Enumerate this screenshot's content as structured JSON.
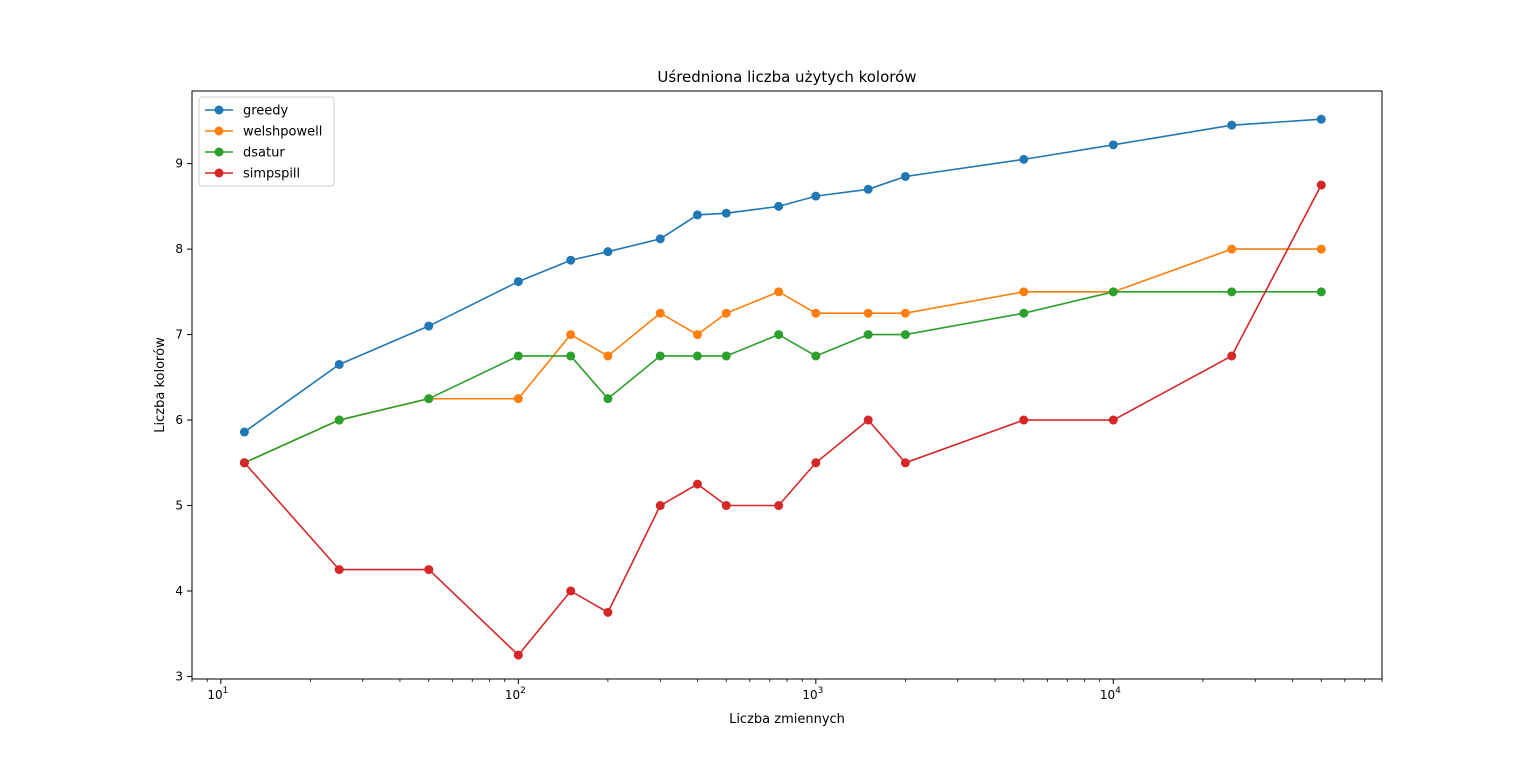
{
  "chart_data": {
    "type": "line",
    "title": "Uśredniona liczba użytych kolorów",
    "xlabel": "Liczba zmiennych",
    "ylabel": "Liczba kolorów",
    "xscale": "log",
    "xlim": [
      8,
      80000
    ],
    "ylim": [
      2.97,
      9.85
    ],
    "grid": false,
    "legend_position": "top-left",
    "x": [
      12,
      25,
      50,
      100,
      150,
      200,
      300,
      400,
      500,
      750,
      1000,
      1500,
      2000,
      5000,
      10000,
      25000,
      50000
    ],
    "x_ticks": [
      {
        "value": 10,
        "base": "10",
        "exp": "1"
      },
      {
        "value": 100,
        "base": "10",
        "exp": "2"
      },
      {
        "value": 1000,
        "base": "10",
        "exp": "3"
      },
      {
        "value": 10000,
        "base": "10",
        "exp": "4"
      }
    ],
    "y_ticks": [
      3,
      4,
      5,
      6,
      7,
      8,
      9
    ],
    "series": [
      {
        "name": "greedy",
        "color": "#1f77b4",
        "values": [
          5.86,
          6.65,
          7.1,
          7.62,
          7.87,
          7.97,
          8.12,
          8.4,
          8.42,
          8.5,
          8.62,
          8.7,
          8.85,
          9.05,
          9.22,
          9.45,
          9.52
        ]
      },
      {
        "name": "welshpowell",
        "color": "#ff7f0e",
        "values": [
          5.5,
          6.0,
          6.25,
          6.25,
          7.0,
          6.75,
          7.25,
          7.0,
          7.25,
          7.5,
          7.25,
          7.25,
          7.25,
          7.5,
          7.5,
          8.0,
          8.0
        ]
      },
      {
        "name": "dsatur",
        "color": "#2ca02c",
        "values": [
          5.5,
          6.0,
          6.25,
          6.75,
          6.75,
          6.25,
          6.75,
          6.75,
          6.75,
          7.0,
          6.75,
          7.0,
          7.0,
          7.25,
          7.5,
          7.5,
          7.5
        ]
      },
      {
        "name": "simpspill",
        "color": "#d62728",
        "values": [
          5.5,
          4.25,
          4.25,
          3.25,
          4.0,
          3.75,
          5.0,
          5.25,
          5.0,
          5.0,
          5.5,
          6.0,
          5.5,
          6.0,
          6.0,
          6.75,
          8.75
        ]
      }
    ]
  }
}
